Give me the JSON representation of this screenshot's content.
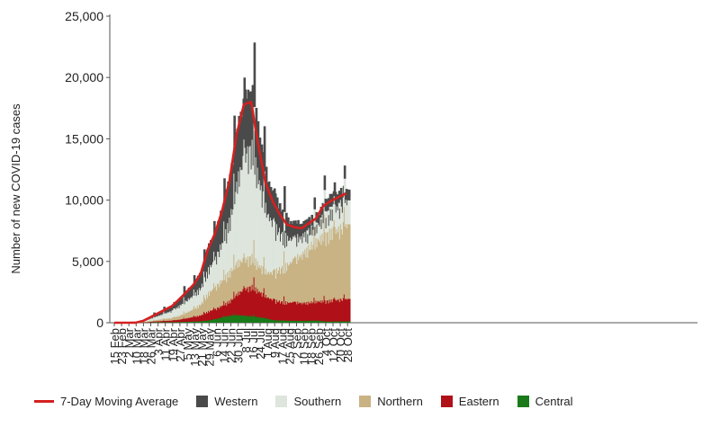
{
  "chart_data": {
    "type": "bar",
    "ylabel": "Number of new COVID-19 cases",
    "xlabel": "",
    "ylim": [
      0,
      25000
    ],
    "yticks": [
      "0",
      "5,000",
      "10,000",
      "15,000",
      "20,000",
      "25,000"
    ],
    "ytick_values": [
      0,
      5000,
      10000,
      15000,
      20000,
      25000
    ],
    "stacked": true,
    "grid": false,
    "legend_position": "bottom",
    "x_ticks": [
      "15 Feb",
      "23 Feb",
      "2 Mar",
      "10 Mar",
      "18 Mar",
      "26 Mar",
      "3 Apr",
      "11 Apr",
      "19 Apr",
      "27 Apr",
      "5 May",
      "13 May",
      "21 May",
      "29 May",
      "6 Jun",
      "14 Jun",
      "22 Jun",
      "30 Jun",
      "8 Jul",
      "16 Jul",
      "24 Jul",
      "1 Aug",
      "9 Aug",
      "17 Aug",
      "25 Aug",
      "2 Sep",
      "10 Sep",
      "18 Sep",
      "26 Sep",
      "4 Oct",
      "12 Oct",
      "20 Oct",
      "28 Oct"
    ],
    "regions": [
      {
        "name": "Central",
        "color": "#1a7a1a",
        "share": [
          0.02,
          0.02,
          0.02,
          0.03,
          0.04,
          0.06,
          0.05,
          0.04,
          0.03,
          0.03,
          0.03,
          0.03,
          0.03,
          0.03,
          0.04,
          0.05,
          0.05,
          0.04,
          0.03,
          0.03,
          0.03,
          0.03,
          0.02,
          0.02,
          0.02,
          0.02,
          0.02,
          0.02,
          0.02,
          0.01,
          0.01,
          0.01,
          0.01
        ]
      },
      {
        "name": "Eastern",
        "color": "#b01018",
        "share": [
          0.1,
          0.1,
          0.1,
          0.1,
          0.1,
          0.1,
          0.1,
          0.1,
          0.1,
          0.1,
          0.11,
          0.12,
          0.12,
          0.12,
          0.11,
          0.1,
          0.1,
          0.11,
          0.12,
          0.13,
          0.14,
          0.15,
          0.16,
          0.17,
          0.18,
          0.19,
          0.18,
          0.18,
          0.18,
          0.17,
          0.17,
          0.17,
          0.17
        ]
      },
      {
        "name": "Northern",
        "color": "#c9b384",
        "share": [
          0.15,
          0.15,
          0.15,
          0.15,
          0.15,
          0.15,
          0.15,
          0.15,
          0.15,
          0.16,
          0.18,
          0.2,
          0.22,
          0.24,
          0.24,
          0.22,
          0.2,
          0.16,
          0.13,
          0.13,
          0.14,
          0.17,
          0.22,
          0.3,
          0.38,
          0.45,
          0.5,
          0.55,
          0.57,
          0.55,
          0.55,
          0.55,
          0.56
        ]
      },
      {
        "name": "Southern",
        "color": "#dde5dc",
        "share": [
          0.43,
          0.43,
          0.43,
          0.42,
          0.41,
          0.39,
          0.4,
          0.41,
          0.42,
          0.41,
          0.38,
          0.35,
          0.33,
          0.31,
          0.31,
          0.33,
          0.36,
          0.42,
          0.47,
          0.48,
          0.46,
          0.42,
          0.38,
          0.31,
          0.25,
          0.2,
          0.18,
          0.15,
          0.14,
          0.17,
          0.17,
          0.18,
          0.18
        ]
      },
      {
        "name": "Western",
        "color": "#4a4a4a",
        "share": [
          0.3,
          0.3,
          0.3,
          0.3,
          0.3,
          0.3,
          0.3,
          0.3,
          0.3,
          0.3,
          0.3,
          0.3,
          0.3,
          0.3,
          0.3,
          0.3,
          0.29,
          0.27,
          0.25,
          0.23,
          0.23,
          0.23,
          0.22,
          0.2,
          0.17,
          0.14,
          0.12,
          0.1,
          0.09,
          0.1,
          0.1,
          0.09,
          0.08
        ]
      }
    ],
    "moving_average": {
      "name": "7-Day Moving Average",
      "color": "#d42020",
      "values": [
        0,
        0,
        0,
        10,
        150,
        450,
        750,
        1050,
        1350,
        1900,
        2500,
        3100,
        4000,
        6000,
        7300,
        9200,
        11600,
        15400,
        17800,
        18000,
        14500,
        11400,
        9900,
        8800,
        8000,
        7800,
        7700,
        8100,
        8500,
        9500,
        9900,
        10200,
        10500
      ]
    },
    "peaks": [
      0,
      0,
      0,
      20,
      200,
      600,
      950,
      1350,
      1700,
      2350,
      3100,
      3800,
      4900,
      7300,
      8600,
      11000,
      13500,
      17800,
      21700,
      22400,
      18600,
      14300,
      12200,
      10800,
      9500,
      9000,
      8800,
      9400,
      9900,
      12000,
      12600,
      12500,
      13500
    ],
    "legend": [
      {
        "name": "7-Day Moving Average",
        "type": "line",
        "color": "#d42020"
      },
      {
        "name": "Western",
        "type": "box",
        "color": "#4a4a4a"
      },
      {
        "name": "Southern",
        "type": "box",
        "color": "#dde5dc"
      },
      {
        "name": "Northern",
        "type": "box",
        "color": "#c9b384"
      },
      {
        "name": "Eastern",
        "type": "box",
        "color": "#b01018"
      },
      {
        "name": "Central",
        "type": "box",
        "color": "#1a7a1a"
      }
    ]
  }
}
